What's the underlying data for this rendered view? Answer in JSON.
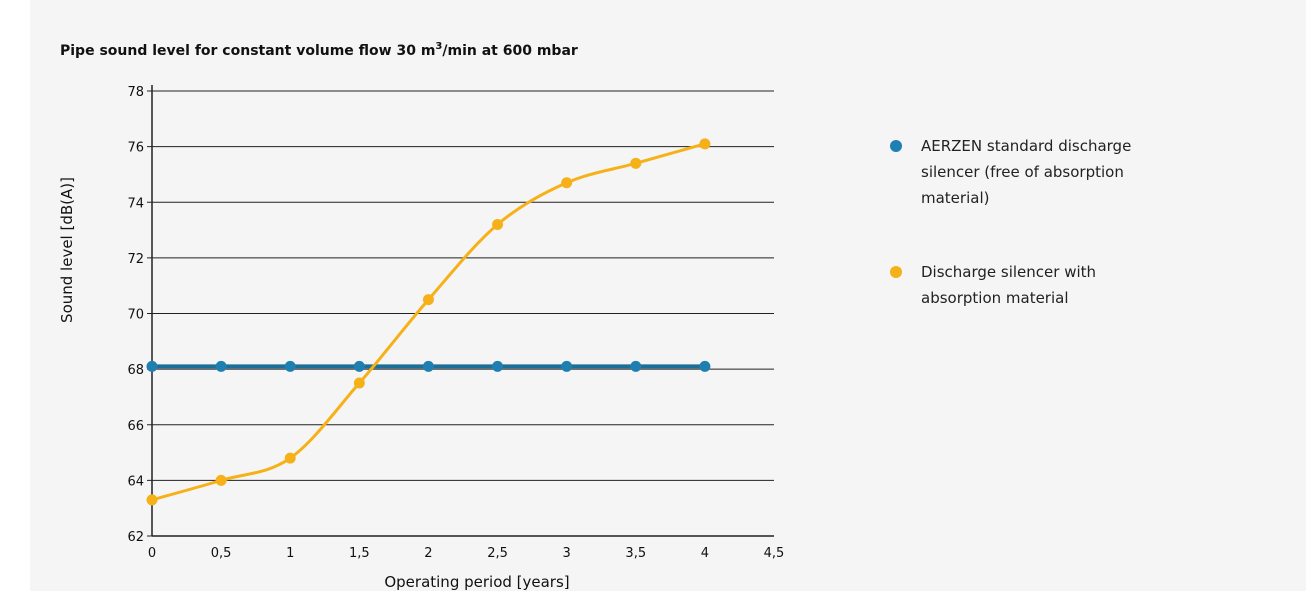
{
  "colors": {
    "panel_background": "#f5f5f5",
    "series_blue": "#1f7fb0",
    "series_blue_line": "#1b6f99",
    "series_orange": "#f6b119",
    "grid": "#222222",
    "text": "#111111"
  },
  "chart_data": {
    "type": "line",
    "title": {
      "main": "Pipe sound level for constant volume flow 30 m",
      "superscript": "3",
      "tail": "/min at 600 mbar"
    },
    "xlabel": "Operating period [years]",
    "ylabel": "Sound level [dB(A)]",
    "xlim": [
      0,
      4.5
    ],
    "ylim": [
      62,
      78
    ],
    "x_ticks": [
      {
        "value": 0,
        "label": "0"
      },
      {
        "value": 0.5,
        "label": "0,5"
      },
      {
        "value": 1,
        "label": "1"
      },
      {
        "value": 1.5,
        "label": "1,5"
      },
      {
        "value": 2,
        "label": "2"
      },
      {
        "value": 2.5,
        "label": "2,5"
      },
      {
        "value": 3,
        "label": "3"
      },
      {
        "value": 3.5,
        "label": "3,5"
      },
      {
        "value": 4,
        "label": "4"
      },
      {
        "value": 4.5,
        "label": "4,5"
      }
    ],
    "y_ticks": [
      {
        "value": 62,
        "label": "62"
      },
      {
        "value": 64,
        "label": "64"
      },
      {
        "value": 66,
        "label": "66"
      },
      {
        "value": 68,
        "label": "68"
      },
      {
        "value": 70,
        "label": "70"
      },
      {
        "value": 72,
        "label": "72"
      },
      {
        "value": 74,
        "label": "74"
      },
      {
        "value": 76,
        "label": "76"
      },
      {
        "value": 78,
        "label": "78"
      }
    ],
    "grid": "horizontal",
    "legend_position": "right",
    "series": [
      {
        "name": "AERZEN standard discharge silencer (free of absorption material)",
        "legend_lines": [
          "AERZEN standard discharge",
          "silencer (free of absorption",
          "material)"
        ],
        "color": "#1f7fb0",
        "smooth": false,
        "x": [
          0,
          0.5,
          1,
          1.5,
          2,
          2.5,
          3,
          3.5,
          4
        ],
        "y": [
          68.1,
          68.1,
          68.1,
          68.1,
          68.1,
          68.1,
          68.1,
          68.1,
          68.1
        ]
      },
      {
        "name": "Discharge silencer with absorption material",
        "legend_lines": [
          "Discharge silencer with",
          "absorption material"
        ],
        "color": "#f6b119",
        "smooth": true,
        "x": [
          0,
          0.5,
          1,
          1.5,
          2,
          2.5,
          3,
          3.5,
          4
        ],
        "y": [
          63.3,
          64.0,
          64.8,
          67.5,
          70.5,
          73.2,
          74.7,
          75.4,
          76.1
        ]
      }
    ]
  }
}
